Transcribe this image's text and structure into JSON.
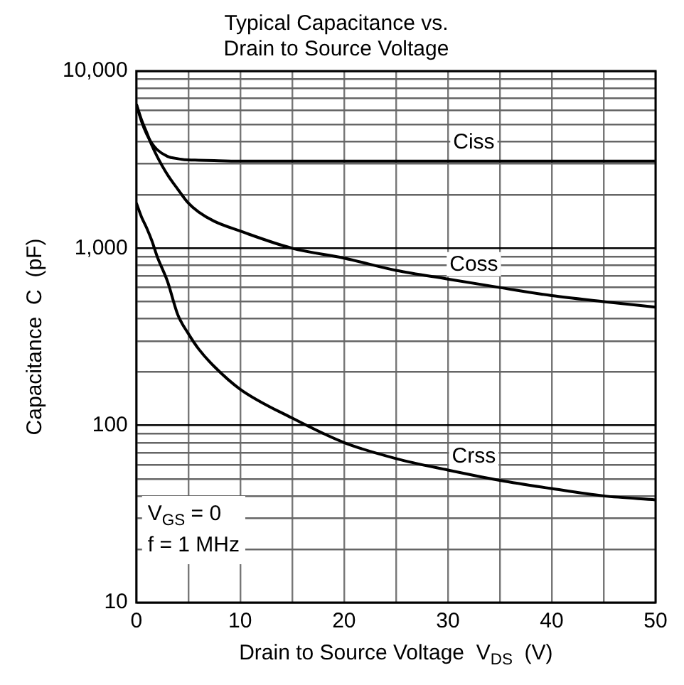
{
  "chart_data": {
    "type": "line",
    "title": "Typical Capacitance vs.\nDrain to Source Voltage",
    "xlabel": "Drain to Source Voltage  V$_{DS}$  (V)",
    "ylabel": "Capacitance  C  (pF)",
    "x": [
      0,
      0.5,
      1,
      1.5,
      2,
      3,
      4,
      5,
      6,
      7.5,
      10,
      15,
      20,
      25,
      30,
      35,
      40,
      45,
      50
    ],
    "series": [
      {
        "name": "Ciss",
        "color": "#000000",
        "values": [
          6500,
          5200,
          4400,
          3900,
          3600,
          3300,
          3200,
          3150,
          3140,
          3120,
          3100,
          3100,
          3100,
          3100,
          3100,
          3100,
          3100,
          3100,
          3100
        ]
      },
      {
        "name": "Coss",
        "color": "#000000",
        "values": [
          6500,
          5300,
          4500,
          3800,
          3300,
          2600,
          2150,
          1800,
          1600,
          1420,
          1250,
          1000,
          880,
          750,
          670,
          600,
          540,
          500,
          465
        ]
      },
      {
        "name": "Crss",
        "color": "#000000",
        "values": [
          1800,
          1500,
          1300,
          1100,
          900,
          650,
          420,
          330,
          270,
          215,
          160,
          110,
          80,
          65,
          56,
          49,
          44,
          40,
          38
        ]
      }
    ],
    "xlim": [
      0,
      50
    ],
    "xticks": [
      0,
      {
        "value": 5,
        "label": null
      },
      10,
      {
        "value": 15,
        "label": null
      },
      20,
      {
        "value": 25,
        "label": null
      },
      30,
      {
        "value": 35,
        "label": null
      },
      40,
      {
        "value": 45,
        "label": null
      },
      50
    ],
    "ylim": [
      10,
      10000
    ],
    "log": "y",
    "yticks": [
      {
        "value": 10,
        "label": "10"
      },
      {
        "value": 20,
        "label": null
      },
      {
        "value": 30,
        "label": null
      },
      {
        "value": 40,
        "label": null
      },
      {
        "value": 50,
        "label": null
      },
      {
        "value": 60,
        "label": null
      },
      {
        "value": 70,
        "label": null
      },
      {
        "value": 80,
        "label": null
      },
      {
        "value": 90,
        "label": null
      },
      {
        "value": 100,
        "label": "100"
      },
      {
        "value": 200,
        "label": null
      },
      {
        "value": 300,
        "label": null
      },
      {
        "value": 400,
        "label": null
      },
      {
        "value": 500,
        "label": null
      },
      {
        "value": 600,
        "label": null
      },
      {
        "value": 700,
        "label": null
      },
      {
        "value": 800,
        "label": null
      },
      {
        "value": 900,
        "label": null
      },
      {
        "value": 1000,
        "label": "1,000"
      },
      {
        "value": 2000,
        "label": null
      },
      {
        "value": 3000,
        "label": null
      },
      {
        "value": 4000,
        "label": null
      },
      {
        "value": 5000,
        "label": null
      },
      {
        "value": 6000,
        "label": null
      },
      {
        "value": 7000,
        "label": null
      },
      {
        "value": 8000,
        "label": null
      },
      {
        "value": 9000,
        "label": null
      },
      {
        "value": 10000,
        "label": "10,000"
      }
    ],
    "grid": true,
    "legend": false,
    "marker": "none",
    "line_style": "solid",
    "annotations": [
      "V$_{GS}$ = 0",
      "f = 1 MHz"
    ]
  }
}
